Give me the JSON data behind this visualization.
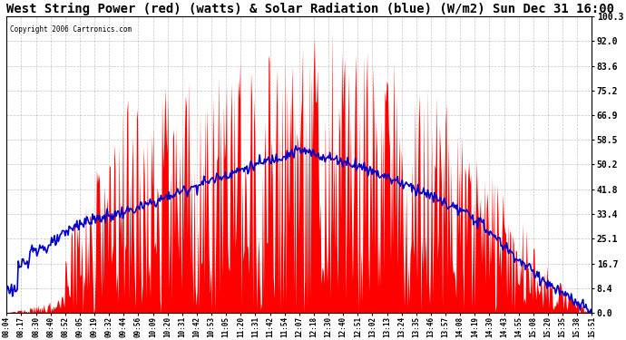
{
  "title": "West String Power (red) (watts) & Solar Radiation (blue) (W/m2) Sun Dec 31 16:00",
  "copyright": "Copyright 2006 Cartronics.com",
  "title_fontsize": 10,
  "background_color": "#ffffff",
  "plot_bg_color": "#ffffff",
  "grid_color": "#aaaaaa",
  "y_min": 0.0,
  "y_max": 100.3,
  "yticks": [
    0.0,
    8.4,
    16.7,
    25.1,
    33.4,
    41.8,
    50.2,
    58.5,
    66.9,
    75.2,
    83.6,
    92.0,
    100.3
  ],
  "red_color": "#ff0000",
  "blue_color": "#0000cc",
  "x_labels": [
    "08:04",
    "08:17",
    "08:30",
    "08:40",
    "08:52",
    "09:05",
    "09:19",
    "09:32",
    "09:44",
    "09:56",
    "10:09",
    "10:20",
    "10:31",
    "10:42",
    "10:53",
    "11:05",
    "11:20",
    "11:31",
    "11:42",
    "11:54",
    "12:07",
    "12:18",
    "12:30",
    "12:40",
    "12:51",
    "13:02",
    "13:13",
    "13:24",
    "13:35",
    "13:46",
    "13:57",
    "14:08",
    "14:19",
    "14:30",
    "14:43",
    "14:55",
    "15:08",
    "15:20",
    "15:35",
    "15:38",
    "15:51"
  ]
}
